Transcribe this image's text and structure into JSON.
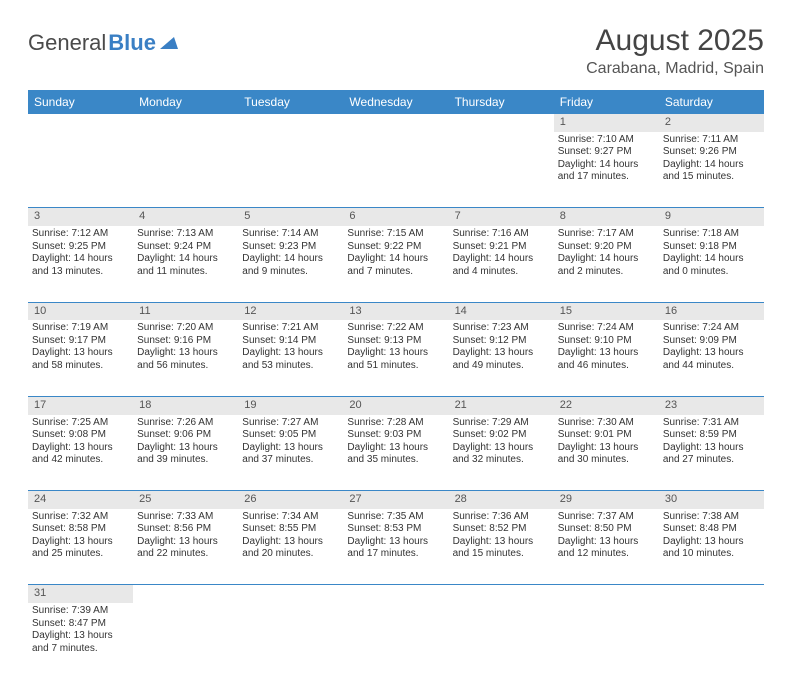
{
  "logo": {
    "general": "General",
    "blue": "Blue"
  },
  "title": "August 2025",
  "location": "Carabana, Madrid, Spain",
  "colors": {
    "header_bg": "#3a87c7",
    "header_fg": "#ffffff",
    "daynum_bg": "#e8e8e8",
    "border": "#3a87c7",
    "text": "#333333"
  },
  "day_headers": [
    "Sunday",
    "Monday",
    "Tuesday",
    "Wednesday",
    "Thursday",
    "Friday",
    "Saturday"
  ],
  "weeks": [
    [
      null,
      null,
      null,
      null,
      null,
      {
        "n": "1",
        "sr": "Sunrise: 7:10 AM",
        "ss": "Sunset: 9:27 PM",
        "dl": "Daylight: 14 hours and 17 minutes."
      },
      {
        "n": "2",
        "sr": "Sunrise: 7:11 AM",
        "ss": "Sunset: 9:26 PM",
        "dl": "Daylight: 14 hours and 15 minutes."
      }
    ],
    [
      {
        "n": "3",
        "sr": "Sunrise: 7:12 AM",
        "ss": "Sunset: 9:25 PM",
        "dl": "Daylight: 14 hours and 13 minutes."
      },
      {
        "n": "4",
        "sr": "Sunrise: 7:13 AM",
        "ss": "Sunset: 9:24 PM",
        "dl": "Daylight: 14 hours and 11 minutes."
      },
      {
        "n": "5",
        "sr": "Sunrise: 7:14 AM",
        "ss": "Sunset: 9:23 PM",
        "dl": "Daylight: 14 hours and 9 minutes."
      },
      {
        "n": "6",
        "sr": "Sunrise: 7:15 AM",
        "ss": "Sunset: 9:22 PM",
        "dl": "Daylight: 14 hours and 7 minutes."
      },
      {
        "n": "7",
        "sr": "Sunrise: 7:16 AM",
        "ss": "Sunset: 9:21 PM",
        "dl": "Daylight: 14 hours and 4 minutes."
      },
      {
        "n": "8",
        "sr": "Sunrise: 7:17 AM",
        "ss": "Sunset: 9:20 PM",
        "dl": "Daylight: 14 hours and 2 minutes."
      },
      {
        "n": "9",
        "sr": "Sunrise: 7:18 AM",
        "ss": "Sunset: 9:18 PM",
        "dl": "Daylight: 14 hours and 0 minutes."
      }
    ],
    [
      {
        "n": "10",
        "sr": "Sunrise: 7:19 AM",
        "ss": "Sunset: 9:17 PM",
        "dl": "Daylight: 13 hours and 58 minutes."
      },
      {
        "n": "11",
        "sr": "Sunrise: 7:20 AM",
        "ss": "Sunset: 9:16 PM",
        "dl": "Daylight: 13 hours and 56 minutes."
      },
      {
        "n": "12",
        "sr": "Sunrise: 7:21 AM",
        "ss": "Sunset: 9:14 PM",
        "dl": "Daylight: 13 hours and 53 minutes."
      },
      {
        "n": "13",
        "sr": "Sunrise: 7:22 AM",
        "ss": "Sunset: 9:13 PM",
        "dl": "Daylight: 13 hours and 51 minutes."
      },
      {
        "n": "14",
        "sr": "Sunrise: 7:23 AM",
        "ss": "Sunset: 9:12 PM",
        "dl": "Daylight: 13 hours and 49 minutes."
      },
      {
        "n": "15",
        "sr": "Sunrise: 7:24 AM",
        "ss": "Sunset: 9:10 PM",
        "dl": "Daylight: 13 hours and 46 minutes."
      },
      {
        "n": "16",
        "sr": "Sunrise: 7:24 AM",
        "ss": "Sunset: 9:09 PM",
        "dl": "Daylight: 13 hours and 44 minutes."
      }
    ],
    [
      {
        "n": "17",
        "sr": "Sunrise: 7:25 AM",
        "ss": "Sunset: 9:08 PM",
        "dl": "Daylight: 13 hours and 42 minutes."
      },
      {
        "n": "18",
        "sr": "Sunrise: 7:26 AM",
        "ss": "Sunset: 9:06 PM",
        "dl": "Daylight: 13 hours and 39 minutes."
      },
      {
        "n": "19",
        "sr": "Sunrise: 7:27 AM",
        "ss": "Sunset: 9:05 PM",
        "dl": "Daylight: 13 hours and 37 minutes."
      },
      {
        "n": "20",
        "sr": "Sunrise: 7:28 AM",
        "ss": "Sunset: 9:03 PM",
        "dl": "Daylight: 13 hours and 35 minutes."
      },
      {
        "n": "21",
        "sr": "Sunrise: 7:29 AM",
        "ss": "Sunset: 9:02 PM",
        "dl": "Daylight: 13 hours and 32 minutes."
      },
      {
        "n": "22",
        "sr": "Sunrise: 7:30 AM",
        "ss": "Sunset: 9:01 PM",
        "dl": "Daylight: 13 hours and 30 minutes."
      },
      {
        "n": "23",
        "sr": "Sunrise: 7:31 AM",
        "ss": "Sunset: 8:59 PM",
        "dl": "Daylight: 13 hours and 27 minutes."
      }
    ],
    [
      {
        "n": "24",
        "sr": "Sunrise: 7:32 AM",
        "ss": "Sunset: 8:58 PM",
        "dl": "Daylight: 13 hours and 25 minutes."
      },
      {
        "n": "25",
        "sr": "Sunrise: 7:33 AM",
        "ss": "Sunset: 8:56 PM",
        "dl": "Daylight: 13 hours and 22 minutes."
      },
      {
        "n": "26",
        "sr": "Sunrise: 7:34 AM",
        "ss": "Sunset: 8:55 PM",
        "dl": "Daylight: 13 hours and 20 minutes."
      },
      {
        "n": "27",
        "sr": "Sunrise: 7:35 AM",
        "ss": "Sunset: 8:53 PM",
        "dl": "Daylight: 13 hours and 17 minutes."
      },
      {
        "n": "28",
        "sr": "Sunrise: 7:36 AM",
        "ss": "Sunset: 8:52 PM",
        "dl": "Daylight: 13 hours and 15 minutes."
      },
      {
        "n": "29",
        "sr": "Sunrise: 7:37 AM",
        "ss": "Sunset: 8:50 PM",
        "dl": "Daylight: 13 hours and 12 minutes."
      },
      {
        "n": "30",
        "sr": "Sunrise: 7:38 AM",
        "ss": "Sunset: 8:48 PM",
        "dl": "Daylight: 13 hours and 10 minutes."
      }
    ],
    [
      {
        "n": "31",
        "sr": "Sunrise: 7:39 AM",
        "ss": "Sunset: 8:47 PM",
        "dl": "Daylight: 13 hours and 7 minutes."
      },
      null,
      null,
      null,
      null,
      null,
      null
    ]
  ]
}
